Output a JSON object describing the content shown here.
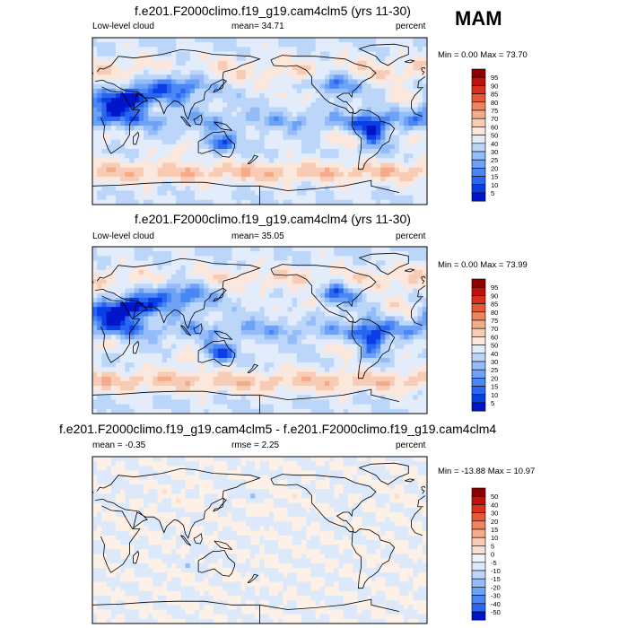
{
  "season": "MAM",
  "colors": {
    "abs_scale": [
      "#00007a",
      "#0015c8",
      "#0a3fe6",
      "#2a66f0",
      "#4b86f5",
      "#6ea2f7",
      "#93bcf8",
      "#bcd6f9",
      "#e2ecfa",
      "#fbe7dc",
      "#f8ccb4",
      "#f4ab8a",
      "#ee855e",
      "#e55a35",
      "#d8301a",
      "#bc120b",
      "#8e0000"
    ],
    "diff_scale": [
      "#00007a",
      "#0015c8",
      "#0a3fe6",
      "#2a66f0",
      "#4b86f5",
      "#6ea2f7",
      "#93bcf8",
      "#bcd6f9",
      "#dce9fa",
      "#eef4fb",
      "#fdf0e6",
      "#fbe0cf",
      "#f8ccb4",
      "#f4ab8a",
      "#ee855e",
      "#e55a35",
      "#d8301a",
      "#bc120b",
      "#8e0000"
    ]
  },
  "chart_data": [
    {
      "type": "heatmap",
      "title": "f.e201.F2000climo.f19_g19.cam4clm5 (yrs 11-30)",
      "variable": "Low-level cloud",
      "stat_text": "mean=  34.71",
      "units": "percent",
      "minmax_text": "Min =   0.00 Max =  73.70",
      "min": 0.0,
      "max": 73.7,
      "mean": 34.71,
      "colorbar_levels": [
        "95",
        "90",
        "85",
        "80",
        "75",
        "70",
        "60",
        "50",
        "40",
        "30",
        "25",
        "20",
        "15",
        "10",
        "5"
      ]
    },
    {
      "type": "heatmap",
      "title": "f.e201.F2000climo.f19_g19.cam4clm4 (yrs 11-30)",
      "variable": "Low-level cloud",
      "stat_text": "mean=  35.05",
      "units": "percent",
      "minmax_text": "Min =   0.00 Max =  73.99",
      "min": 0.0,
      "max": 73.99,
      "mean": 35.05,
      "colorbar_levels": [
        "95",
        "90",
        "85",
        "80",
        "75",
        "70",
        "60",
        "50",
        "40",
        "30",
        "25",
        "20",
        "15",
        "10",
        "5"
      ]
    },
    {
      "type": "heatmap",
      "title": "f.e201.F2000climo.f19_g19.cam4clm5 - f.e201.F2000climo.f19_g19.cam4clm4",
      "stat_text": "mean =  -0.35",
      "rmse_text": "rmse =   2.25",
      "units": "percent",
      "minmax_text": "Min = -13.88 Max =  10.97",
      "min": -13.88,
      "max": 10.97,
      "mean": -0.35,
      "rmse": 2.25,
      "colorbar_levels": [
        "50",
        "40",
        "30",
        "20",
        "15",
        "10",
        "5",
        "0",
        "-5",
        "-10",
        "-15",
        "-20",
        "-30",
        "-40",
        "-50"
      ]
    }
  ]
}
